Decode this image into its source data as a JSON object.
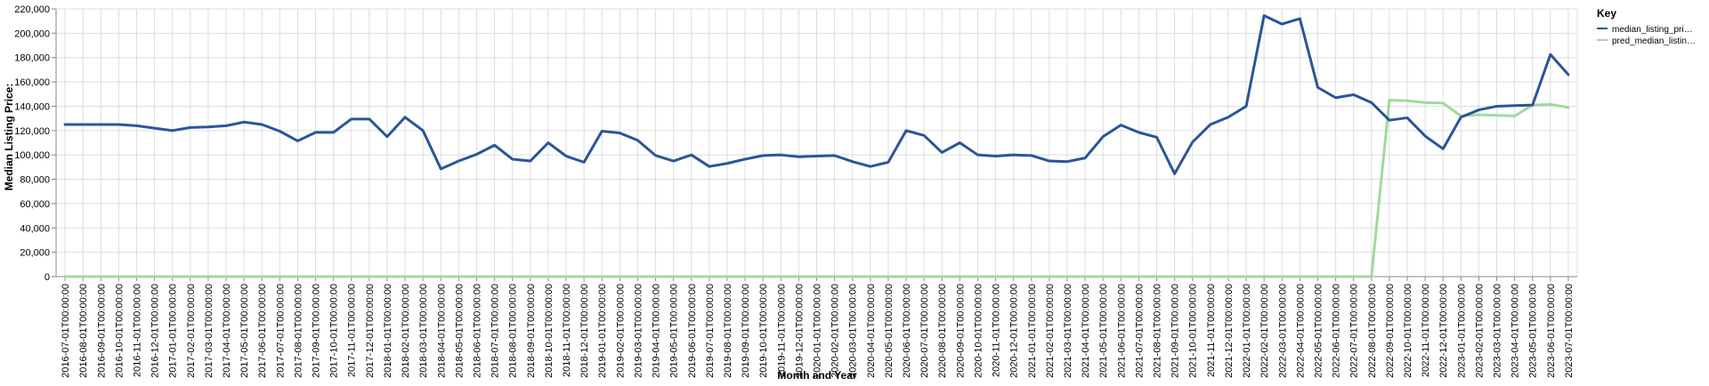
{
  "chart_data": {
    "type": "line",
    "xlabel": "Month and Year",
    "ylabel": "Median Listing Price:",
    "ylim": [
      0,
      220000
    ],
    "yticks": [
      "0",
      "20,000",
      "40,000",
      "60,000",
      "80,000",
      "100,000",
      "120,000",
      "140,000",
      "160,000",
      "180,000",
      "200,000",
      "220,000"
    ],
    "grid": true,
    "legend": {
      "title": "Key",
      "position": "top-right"
    },
    "x": [
      "2016-07-01T00:00:00",
      "2016-08-01T00:00:00",
      "2016-09-01T00:00:00",
      "2016-10-01T00:00:00",
      "2016-11-01T00:00:00",
      "2016-12-01T00:00:00",
      "2017-01-01T00:00:00",
      "2017-02-01T00:00:00",
      "2017-03-01T00:00:00",
      "2017-04-01T00:00:00",
      "2017-05-01T00:00:00",
      "2017-06-01T00:00:00",
      "2017-07-01T00:00:00",
      "2017-08-01T00:00:00",
      "2017-09-01T00:00:00",
      "2017-10-01T00:00:00",
      "2017-11-01T00:00:00",
      "2017-12-01T00:00:00",
      "2018-01-01T00:00:00",
      "2018-02-01T00:00:00",
      "2018-03-01T00:00:00",
      "2018-04-01T00:00:00",
      "2018-05-01T00:00:00",
      "2018-06-01T00:00:00",
      "2018-07-01T00:00:00",
      "2018-08-01T00:00:00",
      "2018-09-01T00:00:00",
      "2018-10-01T00:00:00",
      "2018-11-01T00:00:00",
      "2018-12-01T00:00:00",
      "2019-01-01T00:00:00",
      "2019-02-01T00:00:00",
      "2019-03-01T00:00:00",
      "2019-04-01T00:00:00",
      "2019-05-01T00:00:00",
      "2019-06-01T00:00:00",
      "2019-07-01T00:00:00",
      "2019-08-01T00:00:00",
      "2019-09-01T00:00:00",
      "2019-10-01T00:00:00",
      "2019-11-01T00:00:00",
      "2019-12-01T00:00:00",
      "2020-01-01T00:00:00",
      "2020-02-01T00:00:00",
      "2020-03-01T00:00:00",
      "2020-04-01T00:00:00",
      "2020-05-01T00:00:00",
      "2020-06-01T00:00:00",
      "2020-07-01T00:00:00",
      "2020-08-01T00:00:00",
      "2020-09-01T00:00:00",
      "2020-10-01T00:00:00",
      "2020-11-01T00:00:00",
      "2020-12-01T00:00:00",
      "2021-01-01T00:00:00",
      "2021-02-01T00:00:00",
      "2021-03-01T00:00:00",
      "2021-04-01T00:00:00",
      "2021-05-01T00:00:00",
      "2021-06-01T00:00:00",
      "2021-07-01T00:00:00",
      "2021-08-01T00:00:00",
      "2021-09-01T00:00:00",
      "2021-10-01T00:00:00",
      "2021-11-01T00:00:00",
      "2021-12-01T00:00:00",
      "2022-01-01T00:00:00",
      "2022-02-01T00:00:00",
      "2022-03-01T00:00:00",
      "2022-04-01T00:00:00",
      "2022-05-01T00:00:00",
      "2022-06-01T00:00:00",
      "2022-07-01T00:00:00",
      "2022-08-01T00:00:00",
      "2022-09-01T00:00:00",
      "2022-10-01T00:00:00",
      "2022-11-01T00:00:00",
      "2022-12-01T00:00:00",
      "2023-01-01T00:00:00",
      "2023-02-01T00:00:00",
      "2023-03-01T00:00:00",
      "2023-04-01T00:00:00",
      "2023-05-01T00:00:00",
      "2023-06-01T00:00:00",
      "2023-07-01T00:00:00"
    ],
    "series": [
      {
        "name": "median_listing_pri…",
        "color": "#2a5599",
        "values": [
          125000,
          125000,
          125000,
          125000,
          124000,
          122000,
          120000,
          122500,
          123000,
          124000,
          127000,
          125000,
          119500,
          111500,
          118500,
          118500,
          129500,
          129500,
          115000,
          131000,
          120000,
          88500,
          95000,
          100500,
          108000,
          96500,
          95000,
          110000,
          99000,
          94000,
          119500,
          118000,
          112000,
          99500,
          95000,
          100000,
          90500,
          93000,
          96500,
          99500,
          100000,
          98500,
          99000,
          99500,
          94500,
          90500,
          94000,
          120000,
          116000,
          102000,
          110000,
          100000,
          99000,
          100000,
          99500,
          95000,
          94500,
          97500,
          115000,
          124500,
          118500,
          114500,
          84500,
          110500,
          125000,
          131000,
          140000,
          214500,
          207500,
          212000,
          155500,
          147000,
          149500,
          143000,
          128500,
          130500,
          115500,
          105000,
          131000,
          137000,
          140000,
          140500,
          141000,
          182500,
          166000
        ]
      },
      {
        "name": "pred_median_listin…",
        "color": "#a1d99b",
        "values": [
          0,
          0,
          0,
          0,
          0,
          0,
          0,
          0,
          0,
          0,
          0,
          0,
          0,
          0,
          0,
          0,
          0,
          0,
          0,
          0,
          0,
          0,
          0,
          0,
          0,
          0,
          0,
          0,
          0,
          0,
          0,
          0,
          0,
          0,
          0,
          0,
          0,
          0,
          0,
          0,
          0,
          0,
          0,
          0,
          0,
          0,
          0,
          0,
          0,
          0,
          0,
          0,
          0,
          0,
          0,
          0,
          0,
          0,
          0,
          0,
          0,
          0,
          0,
          0,
          0,
          0,
          0,
          0,
          0,
          0,
          0,
          0,
          0,
          0,
          145000,
          144500,
          143000,
          142500,
          132000,
          133000,
          132500,
          132000,
          141000,
          141500,
          139000
        ]
      }
    ]
  }
}
